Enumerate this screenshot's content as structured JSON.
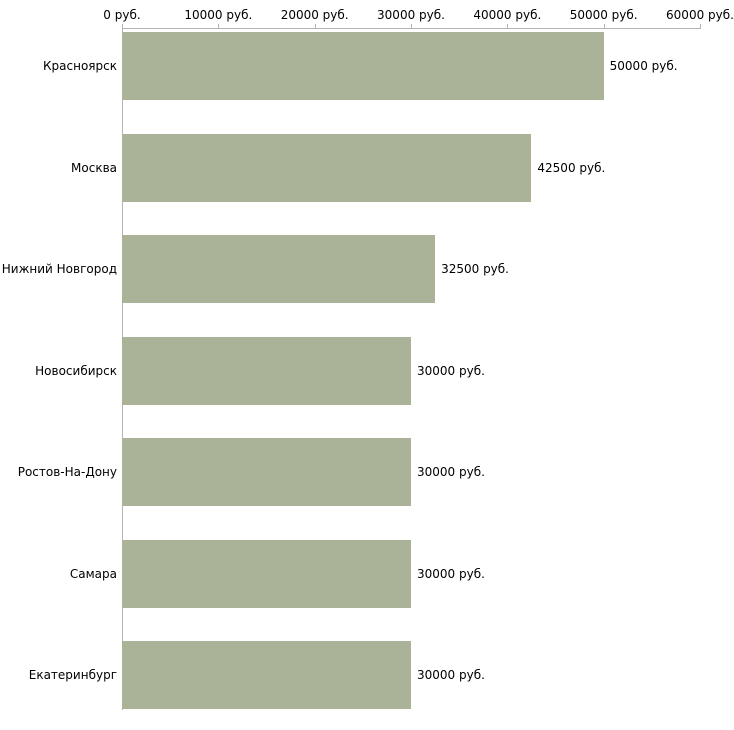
{
  "chart_data": {
    "type": "bar",
    "orientation": "horizontal",
    "title": "",
    "xlabel": "",
    "ylabel": "",
    "xlim": [
      0,
      60000
    ],
    "grid": false,
    "legend": false,
    "categories": [
      "Красноярск",
      "Москва",
      "Нижний Новгород",
      "Новосибирск",
      "Ростов-На-Дону",
      "Самара",
      "Екатеринбург"
    ],
    "values": [
      50000,
      42500,
      32500,
      30000,
      30000,
      30000,
      30000
    ],
    "value_labels": [
      "50000 руб.",
      "42500 руб.",
      "32500 руб.",
      "30000 руб.",
      "30000 руб.",
      "30000 руб.",
      "30000 руб."
    ],
    "x_ticks": [
      0,
      10000,
      20000,
      30000,
      40000,
      50000,
      60000
    ],
    "x_tick_labels": [
      "0 руб.",
      "10000 руб.",
      "20000 руб.",
      "30000 руб.",
      "40000 руб.",
      "50000 руб.",
      "60000 руб."
    ],
    "colors": {
      "bar_fill": "#aab398",
      "axis": "#b3b3b3",
      "text": "#000000",
      "background": "#ffffff"
    }
  }
}
